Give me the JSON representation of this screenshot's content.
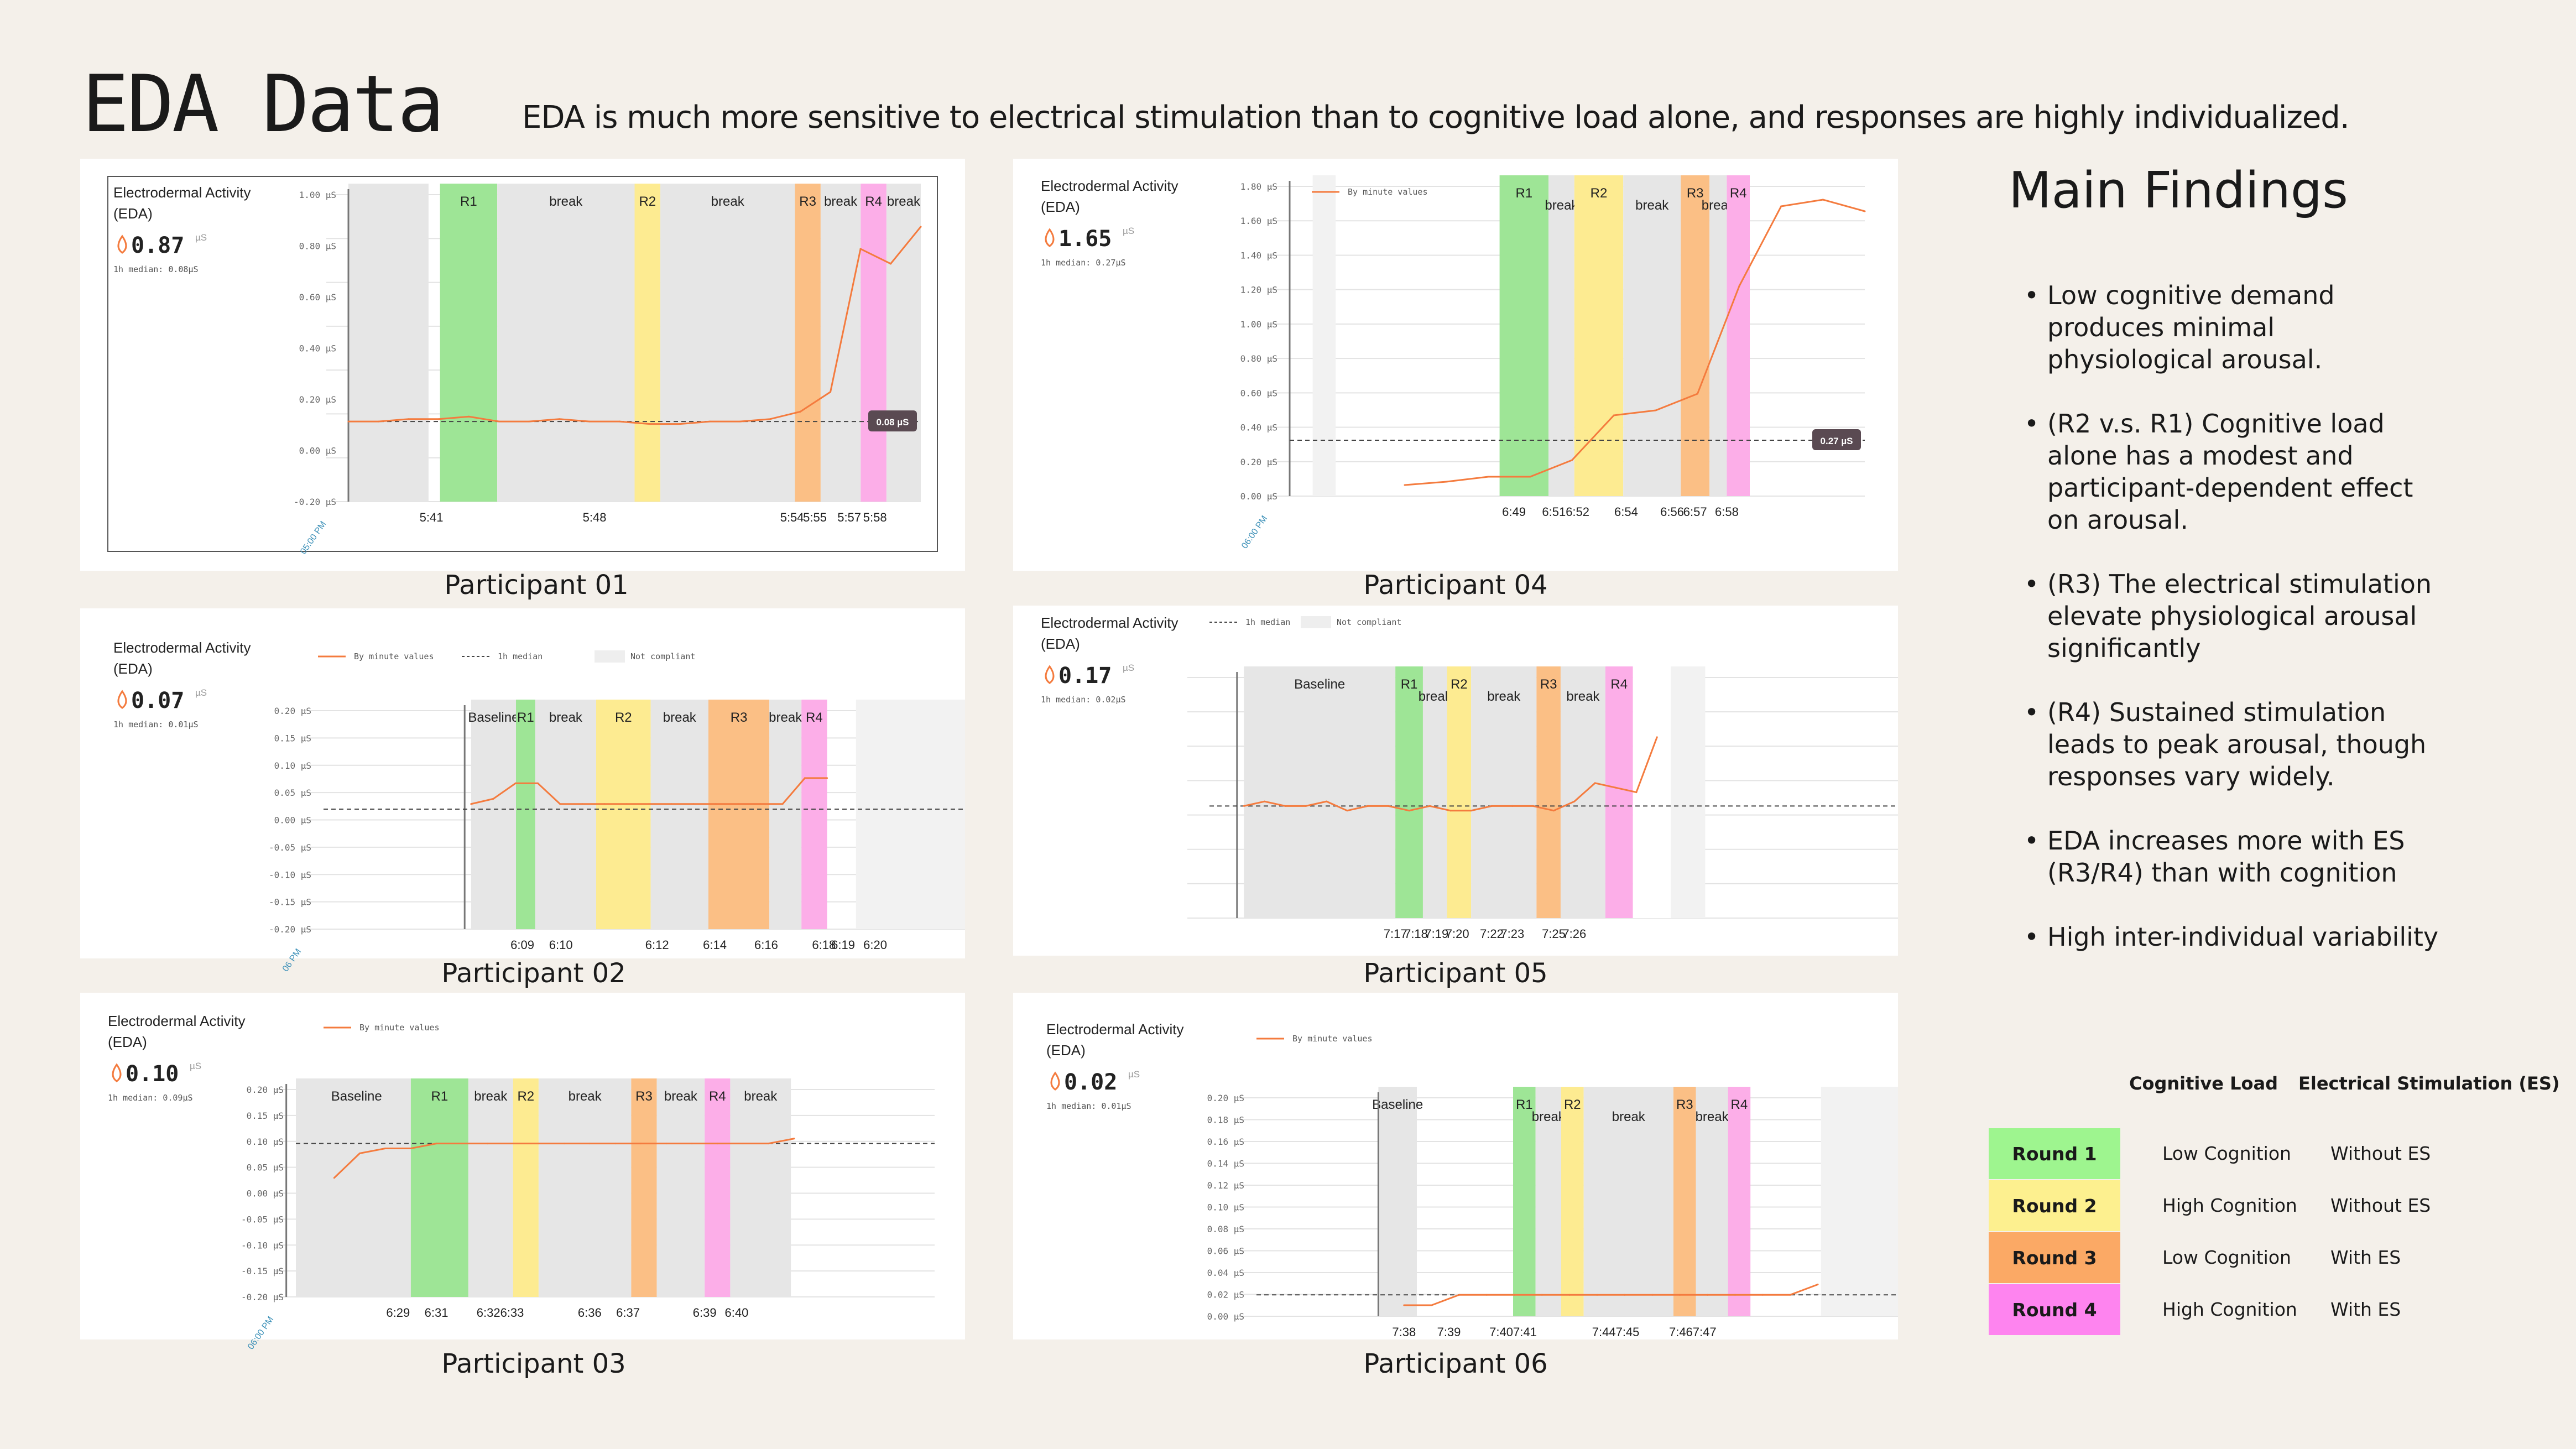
{
  "title": "EDA Data",
  "subtitle": "EDA is much more sensitive to electrical stimulation than to cognitive load alone, and responses are highly individualized.",
  "colors": {
    "R1": "#9ee596",
    "R2": "#fdeb91",
    "R3": "#fbbf85",
    "R4": "#fcaee8",
    "break": "#e6e6e6",
    "line": "#f47b3e",
    "median": "#444444",
    "background": "#f4f0ea"
  },
  "findings": {
    "title": "Main Findings",
    "items": [
      "Low cognitive demand produces minimal physiological arousal.",
      "(R2 v.s. R1) Cognitive load alone has a modest and participant-dependent effect on arousal.",
      "(R3) The electrical stimulation elevate physiological arousal significantly",
      "(R4) Sustained stimulation leads to peak arousal, though responses vary widely.",
      "EDA increases more with ES (R3/R4) than with cognition",
      "High inter-individual variability"
    ]
  },
  "legend": {
    "col_cognitive": "Cognitive Load",
    "col_es": "Electrical Stimulation (ES)",
    "rows": [
      {
        "round": "Round 1",
        "cognitive": "Low Cognition",
        "es": "Without ES",
        "color": "#9ef58f"
      },
      {
        "round": "Round 2",
        "cognitive": "High Cognition",
        "es": "Without ES",
        "color": "#fdf08f"
      },
      {
        "round": "Round 3",
        "cognitive": "Low Cognition",
        "es": "With ES",
        "color": "#fba965"
      },
      {
        "round": "Round 4",
        "cognitive": "High Cognition",
        "es": "With ES",
        "color": "#fe84ef"
      }
    ]
  },
  "chart_data": [
    {
      "type": "line",
      "participant": "Participant 01",
      "widget_title": "Electrodermal Activity",
      "widget_sub": "(EDA)",
      "value": "0.87",
      "unit": "µS",
      "median_label": "1h median: 0.08µS",
      "yticks": [
        "1.00 µS",
        "0.80 µS",
        "0.60 µS",
        "0.40 µS",
        "0.20 µS",
        "0.00 µS",
        "-0.20 µS"
      ],
      "ylim": [
        -0.2,
        1.0
      ],
      "xticks": [
        "5:41",
        "5:48",
        "5:54",
        "5:55",
        "5:57",
        "5:58"
      ],
      "x_axis_start": "05:00 PM",
      "bands": [
        {
          "label": "",
          "kind": "break"
        },
        {
          "label": "R1",
          "kind": "R1"
        },
        {
          "label": "break",
          "kind": "break"
        },
        {
          "label": "R2",
          "kind": "R2"
        },
        {
          "label": "break",
          "kind": "break"
        },
        {
          "label": "R3",
          "kind": "R3"
        },
        {
          "label": "break",
          "kind": "break"
        },
        {
          "label": "R4",
          "kind": "R4"
        },
        {
          "label": "break",
          "kind": "break"
        }
      ],
      "values": [
        0.08,
        0.08,
        0.09,
        0.09,
        0.1,
        0.08,
        0.08,
        0.09,
        0.08,
        0.08,
        0.07,
        0.07,
        0.08,
        0.08,
        0.09,
        0.12,
        0.2,
        0.78,
        0.72,
        0.87
      ],
      "median": 0.08,
      "median_badge": "0.08 µS",
      "legend": []
    },
    {
      "type": "line",
      "participant": "Participant 04",
      "widget_title": "Electrodermal Activity",
      "widget_sub": "(EDA)",
      "value": "1.65",
      "unit": "µS",
      "median_label": "1h median: 0.27µS",
      "yticks": [
        "1.80 µS",
        "1.60 µS",
        "1.40 µS",
        "1.20 µS",
        "1.00 µS",
        "0.80 µS",
        "0.60 µS",
        "0.40 µS",
        "0.20 µS",
        "0.00 µS"
      ],
      "ylim": [
        0,
        1.8
      ],
      "xticks": [
        "6:49",
        "6:516:52",
        "6:54",
        "6:56",
        "6:57",
        "6:58"
      ],
      "x_axis_start": "06:00 PM",
      "bands": [
        {
          "label": "",
          "kind": "light"
        },
        {
          "label": "R1",
          "kind": "R1"
        },
        {
          "label": "break",
          "kind": "break"
        },
        {
          "label": "R2",
          "kind": "R2"
        },
        {
          "label": "break",
          "kind": "break"
        },
        {
          "label": "R3",
          "kind": "R3"
        },
        {
          "label": "break",
          "kind": "break"
        },
        {
          "label": "R4",
          "kind": "R4"
        }
      ],
      "values": [
        0.0,
        0.02,
        0.05,
        0.05,
        0.15,
        0.42,
        0.45,
        0.55,
        1.2,
        1.68,
        1.72,
        1.65
      ],
      "median": 0.27,
      "median_badge": "0.27 µS",
      "legend": [
        "By minute values"
      ]
    },
    {
      "type": "line",
      "participant": "Participant 02",
      "widget_title": "Electrodermal Activity",
      "widget_sub": "(EDA)",
      "value": "0.07",
      "unit": "µS",
      "median_label": "1h median: 0.01µS",
      "yticks": [
        "0.20 µS",
        "0.15 µS",
        "0.10 µS",
        "0.05 µS",
        "0.00 µS",
        "-0.05 µS",
        "-0.10 µS",
        "-0.15 µS",
        "-0.20 µS"
      ],
      "ylim": [
        -0.2,
        0.2
      ],
      "xticks": [
        "6:09",
        "6:10",
        "6:12",
        "6:14",
        "6:16",
        "6:18",
        "6:19",
        "6:20"
      ],
      "x_axis_start": "06 PM",
      "bands": [
        {
          "label": "Baseline",
          "kind": "break"
        },
        {
          "label": "R1",
          "kind": "R1"
        },
        {
          "label": "break",
          "kind": "break"
        },
        {
          "label": "R2",
          "kind": "R2"
        },
        {
          "label": "break",
          "kind": "break"
        },
        {
          "label": "R3",
          "kind": "R3"
        },
        {
          "label": "break",
          "kind": "break"
        },
        {
          "label": "R4",
          "kind": "R4"
        },
        {
          "label": "",
          "kind": "light"
        }
      ],
      "values": [
        0.02,
        0.03,
        0.06,
        0.06,
        0.02,
        0.02,
        0.02,
        0.02,
        0.02,
        0.02,
        0.02,
        0.02,
        0.02,
        0.02,
        0.02,
        0.07,
        0.07
      ],
      "median": 0.01,
      "median_badge": "",
      "legend": [
        "By minute values",
        "1h median",
        "Not compliant"
      ]
    },
    {
      "type": "line",
      "participant": "Participant 05",
      "widget_title": "Electrodermal Activity",
      "widget_sub": "(EDA)",
      "value": "0.17",
      "unit": "µS",
      "median_label": "1h median: 0.02µS",
      "yticks": [],
      "ylim": [
        -0.2,
        0.3
      ],
      "xticks": [
        "7:17",
        "7:18",
        "7:19",
        "7:20",
        "7:22",
        "7:23",
        "7:25",
        "7:26"
      ],
      "x_axis_start": "",
      "bands": [
        {
          "label": "Baseline",
          "kind": "break"
        },
        {
          "label": "R1",
          "kind": "R1"
        },
        {
          "label": "break",
          "kind": "break"
        },
        {
          "label": "R2",
          "kind": "R2"
        },
        {
          "label": "break",
          "kind": "break"
        },
        {
          "label": "R3",
          "kind": "R3"
        },
        {
          "label": "break",
          "kind": "break"
        },
        {
          "label": "R4",
          "kind": "R4"
        },
        {
          "label": "",
          "kind": "white"
        },
        {
          "label": "",
          "kind": "light"
        }
      ],
      "values": [
        0.02,
        0.03,
        0.02,
        0.02,
        0.03,
        0.01,
        0.02,
        0.02,
        0.01,
        0.02,
        0.01,
        0.01,
        0.02,
        0.02,
        0.02,
        0.01,
        0.03,
        0.07,
        0.06,
        0.05,
        0.17
      ],
      "median": 0.02,
      "median_badge": "",
      "legend": [
        "1h median",
        "Not compliant"
      ]
    },
    {
      "type": "line",
      "participant": "Participant 03",
      "widget_title": "Electrodermal Activity",
      "widget_sub": "(EDA)",
      "value": "0.10",
      "unit": "µS",
      "median_label": "1h median: 0.09µS",
      "yticks": [
        "0.20 µS",
        "0.15 µS",
        "0.10 µS",
        "0.05 µS",
        "0.00 µS",
        "-0.05 µS",
        "-0.10 µS",
        "-0.15 µS",
        "-0.20 µS"
      ],
      "ylim": [
        -0.2,
        0.2
      ],
      "xticks": [
        "6:29",
        "6:31",
        "6:326:33",
        "6:36",
        "6:37",
        "6:39",
        "6:40"
      ],
      "x_axis_start": "06:00 PM",
      "bands": [
        {
          "label": "Baseline",
          "kind": "break"
        },
        {
          "label": "R1",
          "kind": "R1"
        },
        {
          "label": "break",
          "kind": "break"
        },
        {
          "label": "R2",
          "kind": "R2"
        },
        {
          "label": "break",
          "kind": "break"
        },
        {
          "label": "R3",
          "kind": "R3"
        },
        {
          "label": "break",
          "kind": "break"
        },
        {
          "label": "R4",
          "kind": "R4"
        },
        {
          "label": "break",
          "kind": "break"
        }
      ],
      "values": [
        0.02,
        0.07,
        0.08,
        0.08,
        0.09,
        0.09,
        0.09,
        0.09,
        0.09,
        0.09,
        0.09,
        0.09,
        0.09,
        0.09,
        0.09,
        0.09,
        0.09,
        0.09,
        0.1
      ],
      "median": 0.09,
      "median_badge": "",
      "legend": [
        "By minute values"
      ]
    },
    {
      "type": "line",
      "participant": "Participant 06",
      "widget_title": "Electrodermal Activity",
      "widget_sub": "(EDA)",
      "value": "0.02",
      "unit": "µS",
      "median_label": "1h median: 0.01µS",
      "yticks": [
        "0.20 µS",
        "0.18 µS",
        "0.16 µS",
        "0.14 µS",
        "0.12 µS",
        "0.10 µS",
        "0.08 µS",
        "0.06 µS",
        "0.04 µS",
        "0.02 µS",
        "0.00 µS"
      ],
      "ylim": [
        0,
        0.2
      ],
      "xticks": [
        "7:38",
        "7:39",
        "7:407:41",
        "7:447:45",
        "7:467:47"
      ],
      "x_axis_start": "",
      "bands": [
        {
          "label": "Baseline",
          "kind": "break"
        },
        {
          "label": "R1",
          "kind": "R1"
        },
        {
          "label": "break",
          "kind": "break"
        },
        {
          "label": "R2",
          "kind": "R2"
        },
        {
          "label": "break",
          "kind": "break"
        },
        {
          "label": "R3",
          "kind": "R3"
        },
        {
          "label": "break",
          "kind": "break"
        },
        {
          "label": "R4",
          "kind": "R4"
        },
        {
          "label": "",
          "kind": "light"
        }
      ],
      "values": [
        0.0,
        0.0,
        0.01,
        0.01,
        0.01,
        0.01,
        0.01,
        0.01,
        0.01,
        0.01,
        0.01,
        0.01,
        0.01,
        0.01,
        0.01,
        0.02
      ],
      "median": 0.01,
      "median_badge": "",
      "legend": [
        "By minute values"
      ]
    }
  ]
}
